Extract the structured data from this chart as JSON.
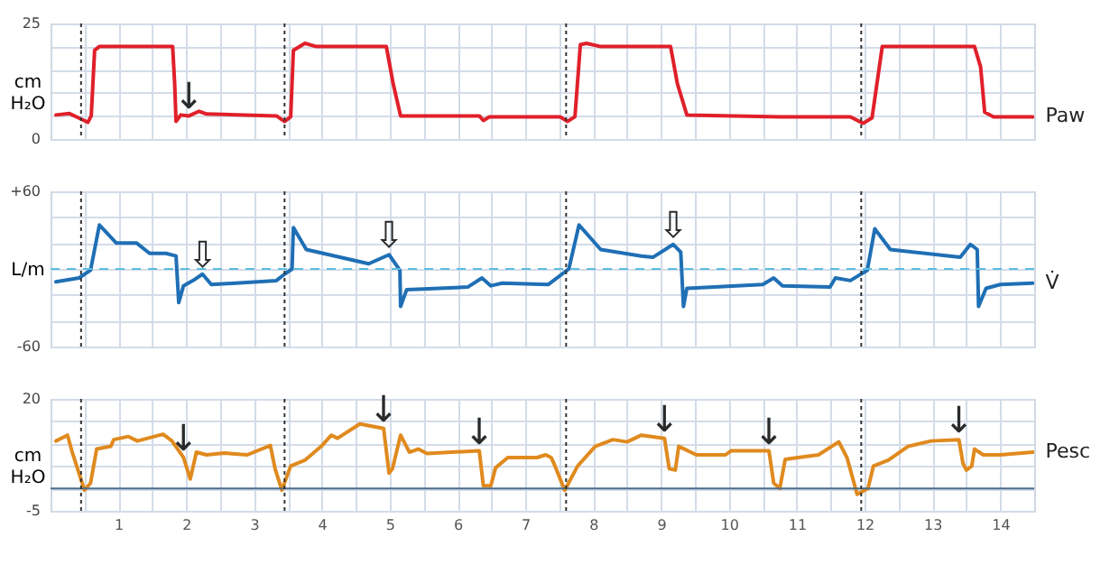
{
  "chart_data": [
    {
      "type": "line",
      "ylabel": "cm H₂O",
      "xlim": [
        0,
        14.5
      ],
      "xticks": [
        {
          "value": 0.5,
          "label": null
        },
        {
          "value": 1,
          "label": null
        },
        {
          "value": 1.5,
          "label": null
        },
        {
          "value": 2,
          "label": null
        },
        {
          "value": 2.5,
          "label": null
        },
        {
          "value": 3,
          "label": null
        },
        {
          "value": 3.5,
          "label": null
        },
        {
          "value": 4,
          "label": null
        },
        {
          "value": 4.5,
          "label": null
        },
        {
          "value": 5,
          "label": null
        },
        {
          "value": 5.5,
          "label": null
        },
        {
          "value": 6,
          "label": null
        },
        {
          "value": 6.5,
          "label": null
        },
        {
          "value": 7,
          "label": null
        },
        {
          "value": 7.5,
          "label": null
        },
        {
          "value": 8,
          "label": null
        },
        {
          "value": 8.5,
          "label": null
        },
        {
          "value": 9,
          "label": null
        },
        {
          "value": 9.5,
          "label": null
        },
        {
          "value": 10,
          "label": null
        },
        {
          "value": 10.5,
          "label": null
        },
        {
          "value": 11,
          "label": null
        },
        {
          "value": 11.5,
          "label": null
        },
        {
          "value": 12,
          "label": null
        },
        {
          "value": 12.5,
          "label": null
        },
        {
          "value": 13,
          "label": null
        },
        {
          "value": 13.5,
          "label": null
        },
        {
          "value": 14,
          "label": null
        }
      ],
      "ylim": [
        0,
        25
      ],
      "yticks": [
        0,
        {
          "value": 5,
          "label": null
        },
        {
          "value": 10,
          "label": null
        },
        {
          "value": 15,
          "label": null
        },
        {
          "value": 20,
          "label": null
        },
        25
      ],
      "grid": true,
      "tick_labels": "y",
      "series": [
        {
          "name": "Paw",
          "color": "#e0202a",
          "x": [
            0.08,
            0.28,
            0.41,
            0.55,
            0.6,
            0.65,
            0.72,
            1.8,
            1.83,
            1.85,
            1.92,
            2.04,
            2.19,
            2.3,
            3.33,
            3.45,
            3.54,
            3.58,
            3.75,
            3.92,
            4.95,
            5.05,
            5.16,
            6.32,
            6.38,
            6.47,
            7.51,
            7.62,
            7.73,
            7.81,
            7.9,
            8.11,
            9.14,
            9.24,
            9.38,
            10.76,
            11.79,
            11.98,
            12.11,
            12.26,
            12.45,
            13.62,
            13.71,
            13.77,
            13.9,
            14.48
          ],
          "values": [
            5.2,
            5.5,
            4.6,
            3.6,
            5,
            19.2,
            20,
            20,
            12,
            3.8,
            5.2,
            5,
            6,
            5.4,
            5,
            3.8,
            4.8,
            19.2,
            20.7,
            20,
            20,
            12,
            5,
            5,
            4,
            4.8,
            4.8,
            3.8,
            4.8,
            20.4,
            20.7,
            20,
            20,
            12,
            5.2,
            4.8,
            4.8,
            3.4,
            4.6,
            20,
            20,
            20,
            15.6,
            5.8,
            4.8,
            4.8
          ]
        }
      ],
      "ref_lines": [
        {
          "axis": "x",
          "value": 0.45,
          "color": "#333333",
          "line_style": "dotted"
        },
        {
          "axis": "x",
          "value": 3.45,
          "color": "#333333",
          "line_style": "dotted"
        },
        {
          "axis": "x",
          "value": 7.6,
          "color": "#333333",
          "line_style": "dotted"
        },
        {
          "axis": "x",
          "value": 11.95,
          "color": "#333333",
          "line_style": "dotted"
        }
      ],
      "annotations": [
        {
          "text": "↓",
          "x": 2.04,
          "y": 5
        }
      ]
    },
    {
      "type": "line",
      "ylabel": "L/m",
      "xlim": [
        0,
        14.5
      ],
      "xticks": [
        {
          "value": 0.5,
          "label": null
        },
        {
          "value": 1,
          "label": null
        },
        {
          "value": 1.5,
          "label": null
        },
        {
          "value": 2,
          "label": null
        },
        {
          "value": 2.5,
          "label": null
        },
        {
          "value": 3,
          "label": null
        },
        {
          "value": 3.5,
          "label": null
        },
        {
          "value": 4,
          "label": null
        },
        {
          "value": 4.5,
          "label": null
        },
        {
          "value": 5,
          "label": null
        },
        {
          "value": 5.5,
          "label": null
        },
        {
          "value": 6,
          "label": null
        },
        {
          "value": 6.5,
          "label": null
        },
        {
          "value": 7,
          "label": null
        },
        {
          "value": 7.5,
          "label": null
        },
        {
          "value": 8,
          "label": null
        },
        {
          "value": 8.5,
          "label": null
        },
        {
          "value": 9,
          "label": null
        },
        {
          "value": 9.5,
          "label": null
        },
        {
          "value": 10,
          "label": null
        },
        {
          "value": 10.5,
          "label": null
        },
        {
          "value": 11,
          "label": null
        },
        {
          "value": 11.5,
          "label": null
        },
        {
          "value": 12,
          "label": null
        },
        {
          "value": 12.5,
          "label": null
        },
        {
          "value": 13,
          "label": null
        },
        {
          "value": 13.5,
          "label": null
        },
        {
          "value": 14,
          "label": null
        }
      ],
      "ylim": [
        -60,
        60
      ],
      "yticks": [
        {
          "value": -60,
          "label": "-60"
        },
        {
          "value": -40,
          "label": null
        },
        {
          "value": -20,
          "label": null
        },
        {
          "value": 0,
          "label": null
        },
        {
          "value": 20,
          "label": null
        },
        {
          "value": 40,
          "label": null
        },
        {
          "value": 60,
          "label": "+60"
        }
      ],
      "grid": true,
      "tick_labels": "y",
      "series": [
        {
          "name": "V̇",
          "color": "#1f6fb5",
          "x": [
            0.08,
            0.42,
            0.59,
            0.72,
            0.97,
            1.27,
            1.46,
            1.7,
            1.85,
            1.89,
            1.96,
            2.13,
            2.24,
            2.37,
            2.73,
            3.33,
            3.45,
            3.56,
            3.58,
            3.77,
            4.69,
            4.99,
            5.15,
            5.16,
            5.25,
            6.15,
            6.36,
            6.49,
            6.66,
            7.34,
            7.64,
            7.79,
            8.11,
            8.71,
            8.88,
            9.18,
            9.29,
            9.33,
            9.38,
            10.5,
            10.66,
            10.79,
            11.49,
            11.57,
            11.79,
            12.04,
            12.15,
            12.38,
            13.41,
            13.56,
            13.66,
            13.68,
            13.79,
            14.0,
            14.48
          ],
          "values": [
            -10,
            -7,
            -1,
            34,
            20,
            20,
            12,
            12,
            10,
            -26,
            -13,
            -8,
            -4,
            -12,
            -11,
            -9,
            -4,
            0,
            32,
            15,
            4,
            11,
            -1,
            -29,
            -16,
            -14,
            -7,
            -13,
            -11,
            -12,
            0,
            34,
            15,
            10,
            9,
            19,
            13,
            -29,
            -15,
            -12,
            -7,
            -13,
            -14,
            -7,
            -9,
            -1,
            31,
            15,
            9,
            19,
            15,
            -29,
            -15,
            -12,
            -11
          ]
        }
      ],
      "ref_lines": [
        {
          "axis": "y",
          "value": 0,
          "color": "#5bbde0",
          "line_style": "dashed"
        },
        {
          "axis": "x",
          "value": 0.45,
          "color": "#333333",
          "line_style": "dotted"
        },
        {
          "axis": "x",
          "value": 3.45,
          "color": "#333333",
          "line_style": "dotted"
        },
        {
          "axis": "x",
          "value": 7.6,
          "color": "#333333",
          "line_style": "dotted"
        },
        {
          "axis": "x",
          "value": 11.95,
          "color": "#333333",
          "line_style": "dotted"
        }
      ],
      "annotations": [
        {
          "text": "⇩",
          "x": 2.24,
          "y": -4
        },
        {
          "text": "⇩",
          "x": 4.99,
          "y": 11
        },
        {
          "text": "⇩",
          "x": 9.18,
          "y": 19
        }
      ]
    },
    {
      "type": "line",
      "ylabel": "cm H₂O",
      "xlim": [
        0,
        14.5
      ],
      "xticks": [
        {
          "value": 0.5,
          "label": null
        },
        1,
        {
          "value": 1.5,
          "label": null
        },
        2,
        {
          "value": 2.5,
          "label": null
        },
        3,
        {
          "value": 3.5,
          "label": null
        },
        4,
        {
          "value": 4.5,
          "label": null
        },
        5,
        {
          "value": 5.5,
          "label": null
        },
        6,
        {
          "value": 6.5,
          "label": null
        },
        7,
        {
          "value": 7.5,
          "label": null
        },
        8,
        {
          "value": 8.5,
          "label": null
        },
        9,
        {
          "value": 9.5,
          "label": null
        },
        10,
        {
          "value": 10.5,
          "label": null
        },
        11,
        {
          "value": 11.5,
          "label": null
        },
        12,
        {
          "value": 12.5,
          "label": null
        },
        13,
        {
          "value": 13.5,
          "label": null
        },
        14
      ],
      "ylim": [
        -5,
        20
      ],
      "yticks": [
        -5,
        {
          "value": 0,
          "label": null
        },
        {
          "value": 5,
          "label": null
        },
        {
          "value": 10,
          "label": null
        },
        {
          "value": 15,
          "label": null
        },
        20
      ],
      "grid": true,
      "series": [
        {
          "name": "Pesc",
          "color": "#e08a1e",
          "x": [
            0.08,
            0.25,
            0.32,
            0.5,
            0.59,
            0.68,
            0.89,
            0.93,
            1.15,
            1.28,
            1.66,
            1.79,
            1.96,
            2.06,
            2.15,
            2.3,
            2.56,
            2.9,
            3.24,
            3.31,
            3.41,
            3.54,
            3.75,
            3.99,
            4.14,
            4.23,
            4.56,
            4.91,
            4.99,
            5.04,
            5.16,
            5.29,
            5.42,
            5.55,
            6.32,
            6.38,
            6.49,
            6.56,
            6.74,
            7.17,
            7.3,
            7.38,
            7.42,
            7.58,
            7.77,
            8.03,
            8.29,
            8.5,
            8.71,
            9.05,
            9.12,
            9.21,
            9.26,
            9.52,
            9.95,
            10.03,
            10.59,
            10.66,
            10.75,
            10.83,
            11.02,
            11.32,
            11.62,
            11.74,
            11.89,
            12.05,
            12.13,
            12.35,
            12.64,
            12.98,
            13.39,
            13.45,
            13.5,
            13.58,
            13.62,
            13.75,
            14.0,
            14.48
          ],
          "values": [
            10.6,
            11.9,
            8.1,
            -0.4,
            1.2,
            8.8,
            9.4,
            10.9,
            11.6,
            10.6,
            12.1,
            10.6,
            6.9,
            2.1,
            8.1,
            7.5,
            7.9,
            7.5,
            9.6,
            4.4,
            -0.4,
            5,
            6.3,
            9.4,
            11.9,
            11.2,
            14.4,
            13.4,
            3.4,
            4.4,
            11.9,
            8.1,
            8.8,
            7.8,
            8.4,
            0.6,
            0.6,
            4.6,
            6.9,
            6.9,
            7.5,
            6.9,
            5.6,
            -0.4,
            5,
            9.4,
            10.9,
            10.4,
            11.9,
            11.2,
            4.4,
            4.1,
            9.4,
            7.5,
            7.5,
            8.4,
            8.4,
            1.2,
            0,
            6.5,
            6.9,
            7.5,
            10.4,
            6.9,
            -1.3,
            0,
            5,
            6.3,
            9.4,
            10.6,
            10.9,
            5.6,
            4.1,
            5,
            8.8,
            7.5,
            7.5,
            8.1
          ]
        }
      ],
      "ref_lines": [
        {
          "axis": "y",
          "value": 0,
          "color": "#4a6b8a",
          "line_style": "solid"
        },
        {
          "axis": "x",
          "value": 0.45,
          "color": "#333333",
          "line_style": "dotted"
        },
        {
          "axis": "x",
          "value": 3.45,
          "color": "#333333",
          "line_style": "dotted"
        },
        {
          "axis": "x",
          "value": 7.6,
          "color": "#333333",
          "line_style": "dotted"
        },
        {
          "axis": "x",
          "value": 11.95,
          "color": "#333333",
          "line_style": "dotted"
        }
      ],
      "annotations": [
        {
          "text": "↓",
          "x": 1.96,
          "y": 6.9
        },
        {
          "text": "↓",
          "x": 4.91,
          "y": 13.4
        },
        {
          "text": "↓",
          "x": 6.32,
          "y": 8.4
        },
        {
          "text": "↓",
          "x": 9.05,
          "y": 11.2
        },
        {
          "text": "↓",
          "x": 10.59,
          "y": 8.4
        },
        {
          "text": "↓",
          "x": 13.39,
          "y": 10.9
        }
      ]
    }
  ]
}
